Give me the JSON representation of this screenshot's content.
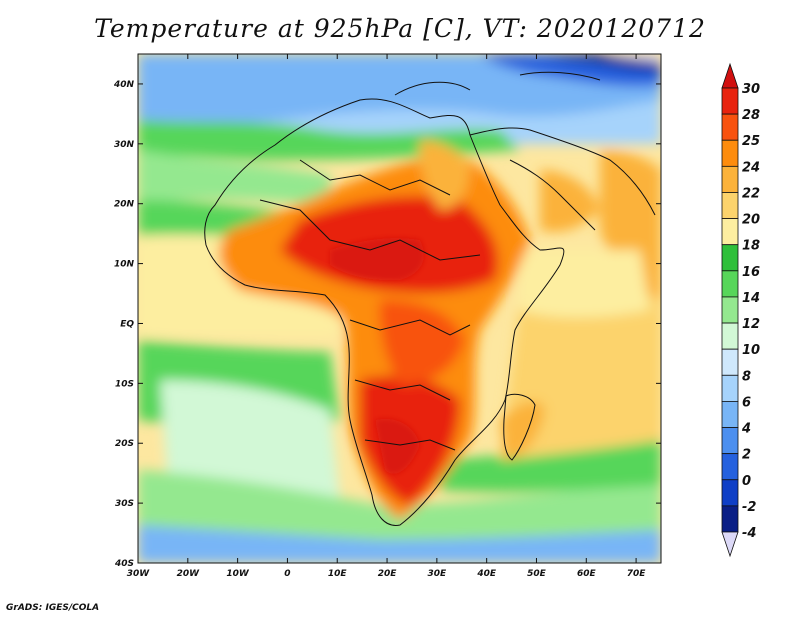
{
  "title": "Temperature at 925hPa [C], VT: 2020120712",
  "footer": "GrADS: IGES/COLA",
  "map": {
    "lon_range": [
      -30,
      75
    ],
    "lat_range": [
      -40,
      45
    ],
    "lon_ticks": [
      {
        "value": -30,
        "label": "30W"
      },
      {
        "value": -20,
        "label": "20W"
      },
      {
        "value": -10,
        "label": "10W"
      },
      {
        "value": 0,
        "label": "0"
      },
      {
        "value": 10,
        "label": "10E"
      },
      {
        "value": 20,
        "label": "20E"
      },
      {
        "value": 30,
        "label": "30E"
      },
      {
        "value": 40,
        "label": "40E"
      },
      {
        "value": 50,
        "label": "50E"
      },
      {
        "value": 60,
        "label": "60E"
      },
      {
        "value": 70,
        "label": "70E"
      }
    ],
    "lat_ticks": [
      {
        "value": 40,
        "label": "40N"
      },
      {
        "value": 30,
        "label": "30N"
      },
      {
        "value": 20,
        "label": "20N"
      },
      {
        "value": 10,
        "label": "10N"
      },
      {
        "value": 0,
        "label": "EQ"
      },
      {
        "value": -10,
        "label": "10S"
      },
      {
        "value": -20,
        "label": "20S"
      },
      {
        "value": -30,
        "label": "30S"
      },
      {
        "value": -40,
        "label": "40S"
      }
    ]
  },
  "colorbar": {
    "labels": [
      "30",
      "28",
      "25",
      "24",
      "22",
      "20",
      "18",
      "16",
      "14",
      "12",
      "10",
      "8",
      "6",
      "4",
      "2",
      "0",
      "-2",
      "-4"
    ],
    "colors": [
      "#e8230e",
      "#f8520f",
      "#fd8c0d",
      "#fbb23a",
      "#fcd36c",
      "#fdeea0",
      "#2fbf3a",
      "#57d65a",
      "#94e88f",
      "#d2f8d6",
      "#cfe8fc",
      "#a6d3fb",
      "#78b5f6",
      "#4c8fef",
      "#2561de",
      "#0f3fc6",
      "#0a1f86"
    ],
    "over_color": "#d10f0f",
    "under_color": "#dcd9f7"
  }
}
